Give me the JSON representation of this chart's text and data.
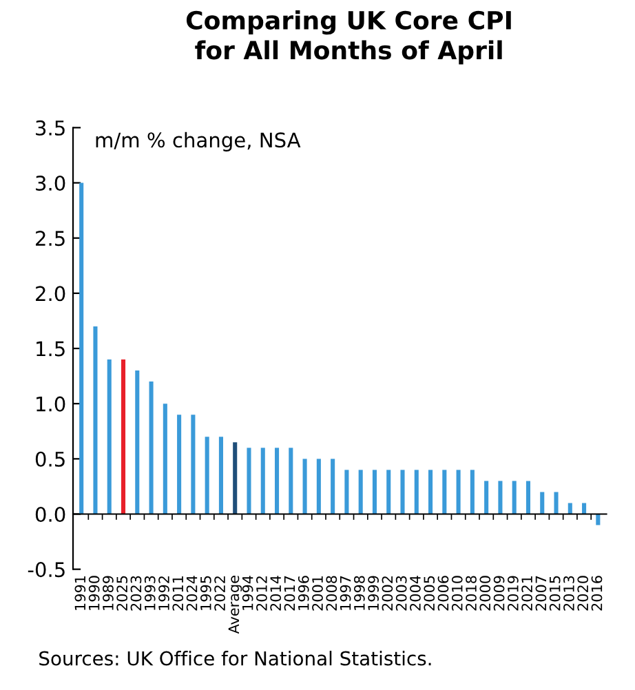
{
  "chart_data": {
    "type": "bar",
    "title": "Comparing UK Core CPI\nfor All Months of April",
    "categories": [
      "1991",
      "1990",
      "1989",
      "2025",
      "2023",
      "1993",
      "1992",
      "2011",
      "2024",
      "1995",
      "2022",
      "Average",
      "1994",
      "2012",
      "2014",
      "2017",
      "1996",
      "2001",
      "2008",
      "1997",
      "1998",
      "1999",
      "2002",
      "2003",
      "2004",
      "2005",
      "2006",
      "2010",
      "2018",
      "2000",
      "2009",
      "2019",
      "2021",
      "2007",
      "2015",
      "2013",
      "2020",
      "2016"
    ],
    "values": [
      3.0,
      1.7,
      1.4,
      1.4,
      1.3,
      1.2,
      1.0,
      0.9,
      0.9,
      0.7,
      0.7,
      0.65,
      0.6,
      0.6,
      0.6,
      0.6,
      0.5,
      0.5,
      0.5,
      0.4,
      0.4,
      0.4,
      0.4,
      0.4,
      0.4,
      0.4,
      0.4,
      0.4,
      0.4,
      0.3,
      0.3,
      0.3,
      0.3,
      0.2,
      0.2,
      0.1,
      0.1,
      -0.1
    ],
    "colors": [
      "#3a9ad9",
      "#3a9ad9",
      "#3a9ad9",
      "#e8202a",
      "#3a9ad9",
      "#3a9ad9",
      "#3a9ad9",
      "#3a9ad9",
      "#3a9ad9",
      "#3a9ad9",
      "#3a9ad9",
      "#1f4e79",
      "#3a9ad9",
      "#3a9ad9",
      "#3a9ad9",
      "#3a9ad9",
      "#3a9ad9",
      "#3a9ad9",
      "#3a9ad9",
      "#3a9ad9",
      "#3a9ad9",
      "#3a9ad9",
      "#3a9ad9",
      "#3a9ad9",
      "#3a9ad9",
      "#3a9ad9",
      "#3a9ad9",
      "#3a9ad9",
      "#3a9ad9",
      "#3a9ad9",
      "#3a9ad9",
      "#3a9ad9",
      "#3a9ad9",
      "#3a9ad9",
      "#3a9ad9",
      "#3a9ad9",
      "#3a9ad9",
      "#3a9ad9"
    ],
    "ylim": [
      -0.5,
      3.5
    ],
    "yticks": [
      {
        "value": -0.5,
        "label": "-0.5"
      },
      {
        "value": 0,
        "label": "0.0"
      },
      {
        "value": 0.5,
        "label": "0.5"
      },
      {
        "value": 1,
        "label": "1.0"
      },
      {
        "value": 1.5,
        "label": "1.5"
      },
      {
        "value": 2,
        "label": "2.0"
      },
      {
        "value": 2.5,
        "label": "2.5"
      },
      {
        "value": 3,
        "label": "3.0"
      },
      {
        "value": 3.5,
        "label": "3.5"
      }
    ],
    "legend": false,
    "annotations": [
      "m/m % change, NSA",
      "Sources: UK Office for National Statistics."
    ]
  }
}
